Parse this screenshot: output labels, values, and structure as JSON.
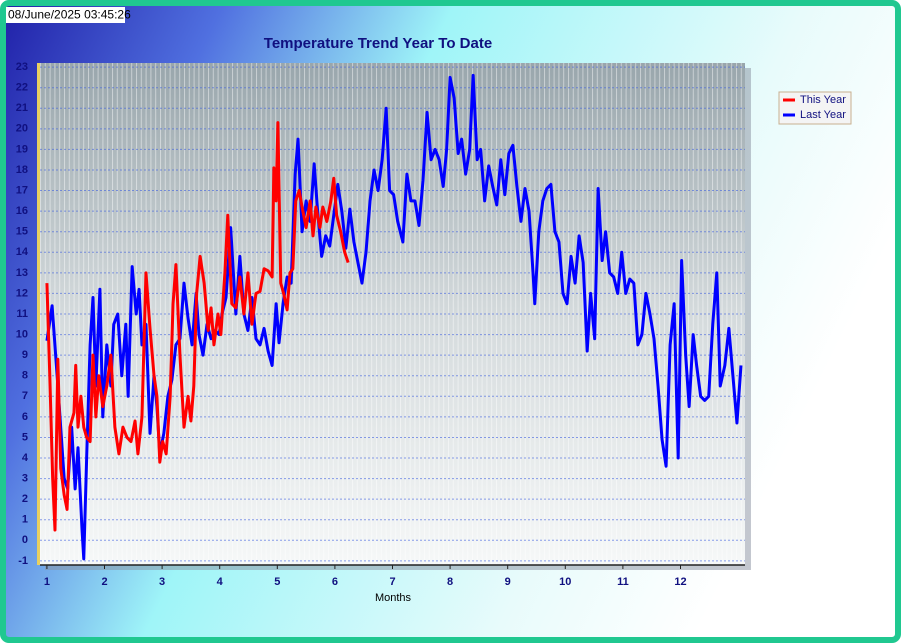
{
  "timestamp": "08/June/2025 03:45:26",
  "chart_data": {
    "type": "line",
    "title": "Temperature Trend Year To Date",
    "x_label": "Months",
    "xlim": [
      0.88,
      13.12
    ],
    "xticks": [
      1,
      2,
      3,
      4,
      5,
      6,
      7,
      8,
      9,
      10,
      11,
      12
    ],
    "ylim": [
      -1.2,
      23.2
    ],
    "yticks": [
      -1,
      0,
      1,
      2,
      3,
      4,
      5,
      6,
      7,
      8,
      9,
      10,
      11,
      12,
      13,
      14,
      15,
      16,
      17,
      18,
      19,
      20,
      21,
      22,
      23
    ],
    "grid": true,
    "legend": "top-right",
    "series": [
      {
        "name": "This Year",
        "color": "#ff0000",
        "x": [
          1.0,
          1.05,
          1.1,
          1.14,
          1.19,
          1.24,
          1.3,
          1.35,
          1.4,
          1.47,
          1.5,
          1.54,
          1.59,
          1.64,
          1.69,
          1.75,
          1.8,
          1.85,
          1.9,
          1.97,
          2.04,
          2.11,
          2.18,
          2.25,
          2.32,
          2.39,
          2.46,
          2.53,
          2.58,
          2.65,
          2.72,
          2.79,
          2.86,
          2.91,
          2.96,
          3.01,
          3.07,
          3.14,
          3.19,
          3.24,
          3.31,
          3.38,
          3.45,
          3.5,
          3.55,
          3.6,
          3.66,
          3.73,
          3.8,
          3.85,
          3.9,
          3.97,
          4.02,
          4.09,
          4.14,
          4.21,
          4.28,
          4.35,
          4.42,
          4.49,
          4.56,
          4.63,
          4.7,
          4.77,
          4.84,
          4.91,
          4.94,
          4.98,
          5.01,
          5.06,
          5.11,
          5.17,
          5.22,
          5.27,
          5.32,
          5.38,
          5.43,
          5.5,
          5.57,
          5.62,
          5.67,
          5.74,
          5.79,
          5.86,
          5.93,
          5.98,
          6.03,
          6.1,
          6.17,
          6.23
        ],
        "values": [
          12.5,
          8,
          3,
          0.5,
          8.8,
          3.5,
          2.2,
          1.5,
          5.5,
          6.2,
          8.5,
          5.5,
          7,
          5.5,
          5,
          4.8,
          9,
          6,
          8,
          6.5,
          7.5,
          9,
          5.5,
          4.2,
          5.5,
          5,
          4.8,
          5.8,
          4.2,
          6,
          13,
          10.3,
          8,
          7,
          3.8,
          4.8,
          4.2,
          7,
          11.5,
          13.4,
          9,
          5.5,
          7,
          5.8,
          7.5,
          12,
          13.8,
          12.5,
          10.2,
          11.3,
          9.5,
          11,
          10,
          13,
          15.8,
          11.5,
          11.3,
          12.8,
          11,
          13,
          10.5,
          12,
          12.1,
          13.2,
          13.1,
          12.8,
          18.1,
          16.5,
          20.3,
          12.5,
          12,
          11.2,
          13,
          13.2,
          16.5,
          17,
          16.2,
          15.2,
          16.5,
          14.8,
          16.2,
          15.2,
          16.2,
          15.5,
          16.5,
          17.6,
          15.8,
          15,
          14,
          13.5
        ]
      },
      {
        "name": "Last Year",
        "color": "#0000ff",
        "x": [
          1.0,
          1.09,
          1.19,
          1.3,
          1.36,
          1.43,
          1.49,
          1.54,
          1.61,
          1.64,
          1.69,
          1.75,
          1.8,
          1.85,
          1.92,
          1.97,
          2.04,
          2.11,
          2.16,
          2.23,
          2.3,
          2.37,
          2.41,
          2.48,
          2.55,
          2.6,
          2.65,
          2.72,
          2.79,
          2.86,
          2.91,
          2.96,
          3.03,
          3.1,
          3.17,
          3.24,
          3.31,
          3.38,
          3.45,
          3.52,
          3.59,
          3.64,
          3.71,
          3.78,
          3.85,
          3.92,
          3.99,
          4.04,
          4.11,
          4.19,
          4.28,
          4.35,
          4.42,
          4.49,
          4.56,
          4.63,
          4.7,
          4.77,
          4.84,
          4.91,
          4.98,
          5.03,
          5.1,
          5.17,
          5.24,
          5.31,
          5.36,
          5.43,
          5.5,
          5.57,
          5.64,
          5.7,
          5.77,
          5.84,
          5.91,
          5.98,
          6.05,
          6.12,
          6.19,
          6.26,
          6.33,
          6.4,
          6.47,
          6.54,
          6.61,
          6.68,
          6.75,
          6.82,
          6.89,
          6.95,
          7.02,
          7.09,
          7.18,
          7.25,
          7.32,
          7.39,
          7.46,
          7.53,
          7.6,
          7.67,
          7.74,
          7.81,
          7.88,
          7.94,
          8.0,
          8.07,
          8.14,
          8.2,
          8.27,
          8.34,
          8.4,
          8.47,
          8.53,
          8.6,
          8.67,
          8.74,
          8.81,
          8.88,
          8.95,
          9.02,
          9.09,
          9.16,
          9.23,
          9.3,
          9.37,
          9.44,
          9.47,
          9.54,
          9.61,
          9.68,
          9.75,
          9.82,
          9.89,
          9.96,
          10.03,
          10.1,
          10.17,
          10.24,
          10.31,
          10.38,
          10.44,
          10.51,
          10.57,
          10.64,
          10.7,
          10.77,
          10.84,
          10.91,
          10.98,
          11.05,
          11.12,
          11.19,
          11.26,
          11.33,
          11.4,
          11.47,
          11.54,
          11.61,
          11.68,
          11.75,
          11.82,
          11.89,
          11.96,
          12.02,
          12.09,
          12.15,
          12.22,
          12.28,
          12.35,
          12.42,
          12.49,
          12.56,
          12.63,
          12.69,
          12.77,
          12.84,
          12.91,
          12.98,
          13.05
        ],
        "values": [
          9.7,
          11.4,
          7.5,
          3,
          2.5,
          5.5,
          2.5,
          4.5,
          0.5,
          -0.9,
          4,
          9.5,
          11.8,
          7.5,
          12.2,
          6,
          9.5,
          7.5,
          10.5,
          11,
          8,
          10.5,
          7,
          13.3,
          11,
          12.2,
          9.5,
          10.5,
          5.2,
          8,
          6.5,
          4.2,
          5.2,
          7,
          7.8,
          9.5,
          9.8,
          12.5,
          10.8,
          9.5,
          12,
          10,
          9,
          10.5,
          9.8,
          10.2,
          10,
          11,
          11.8,
          15.2,
          11,
          13.8,
          11,
          10.2,
          11.8,
          9.8,
          9.5,
          10.3,
          9.2,
          8.5,
          11.5,
          9.6,
          11.5,
          12.8,
          12.5,
          17.8,
          19.5,
          15,
          16.5,
          15.5,
          18.3,
          16,
          13.8,
          14.8,
          14.3,
          15.8,
          17.3,
          16,
          14.2,
          16.1,
          14.5,
          13.5,
          12.5,
          14,
          16.5,
          18,
          17,
          18.5,
          21,
          17,
          16.8,
          15.5,
          14.5,
          17.8,
          16.5,
          16.5,
          15.3,
          17.5,
          20.8,
          18.5,
          19,
          18.5,
          17.2,
          19,
          22.5,
          21.5,
          18.8,
          19.5,
          17.8,
          19,
          22.6,
          18.5,
          19,
          16.5,
          18.2,
          17.2,
          16.3,
          18.5,
          16.8,
          18.8,
          19.2,
          17.2,
          15.5,
          17.1,
          16,
          13,
          11.5,
          15,
          16.5,
          17.1,
          17.3,
          15,
          14.5,
          12,
          11.5,
          13.8,
          12.5,
          14.8,
          13.5,
          9.2,
          12,
          9.8,
          17.1,
          13.6,
          15,
          13,
          12.8,
          12,
          14,
          12,
          12.7,
          12.5,
          9.5,
          10,
          12,
          11,
          9.8,
          7.5,
          4.9,
          3.6,
          9.5,
          11.5,
          4,
          13.6,
          9,
          6.5,
          10,
          8.5,
          7,
          6.8,
          7,
          10.5,
          13,
          7.5,
          8.5,
          10.3,
          8,
          5.7,
          8.5
        ]
      }
    ]
  }
}
